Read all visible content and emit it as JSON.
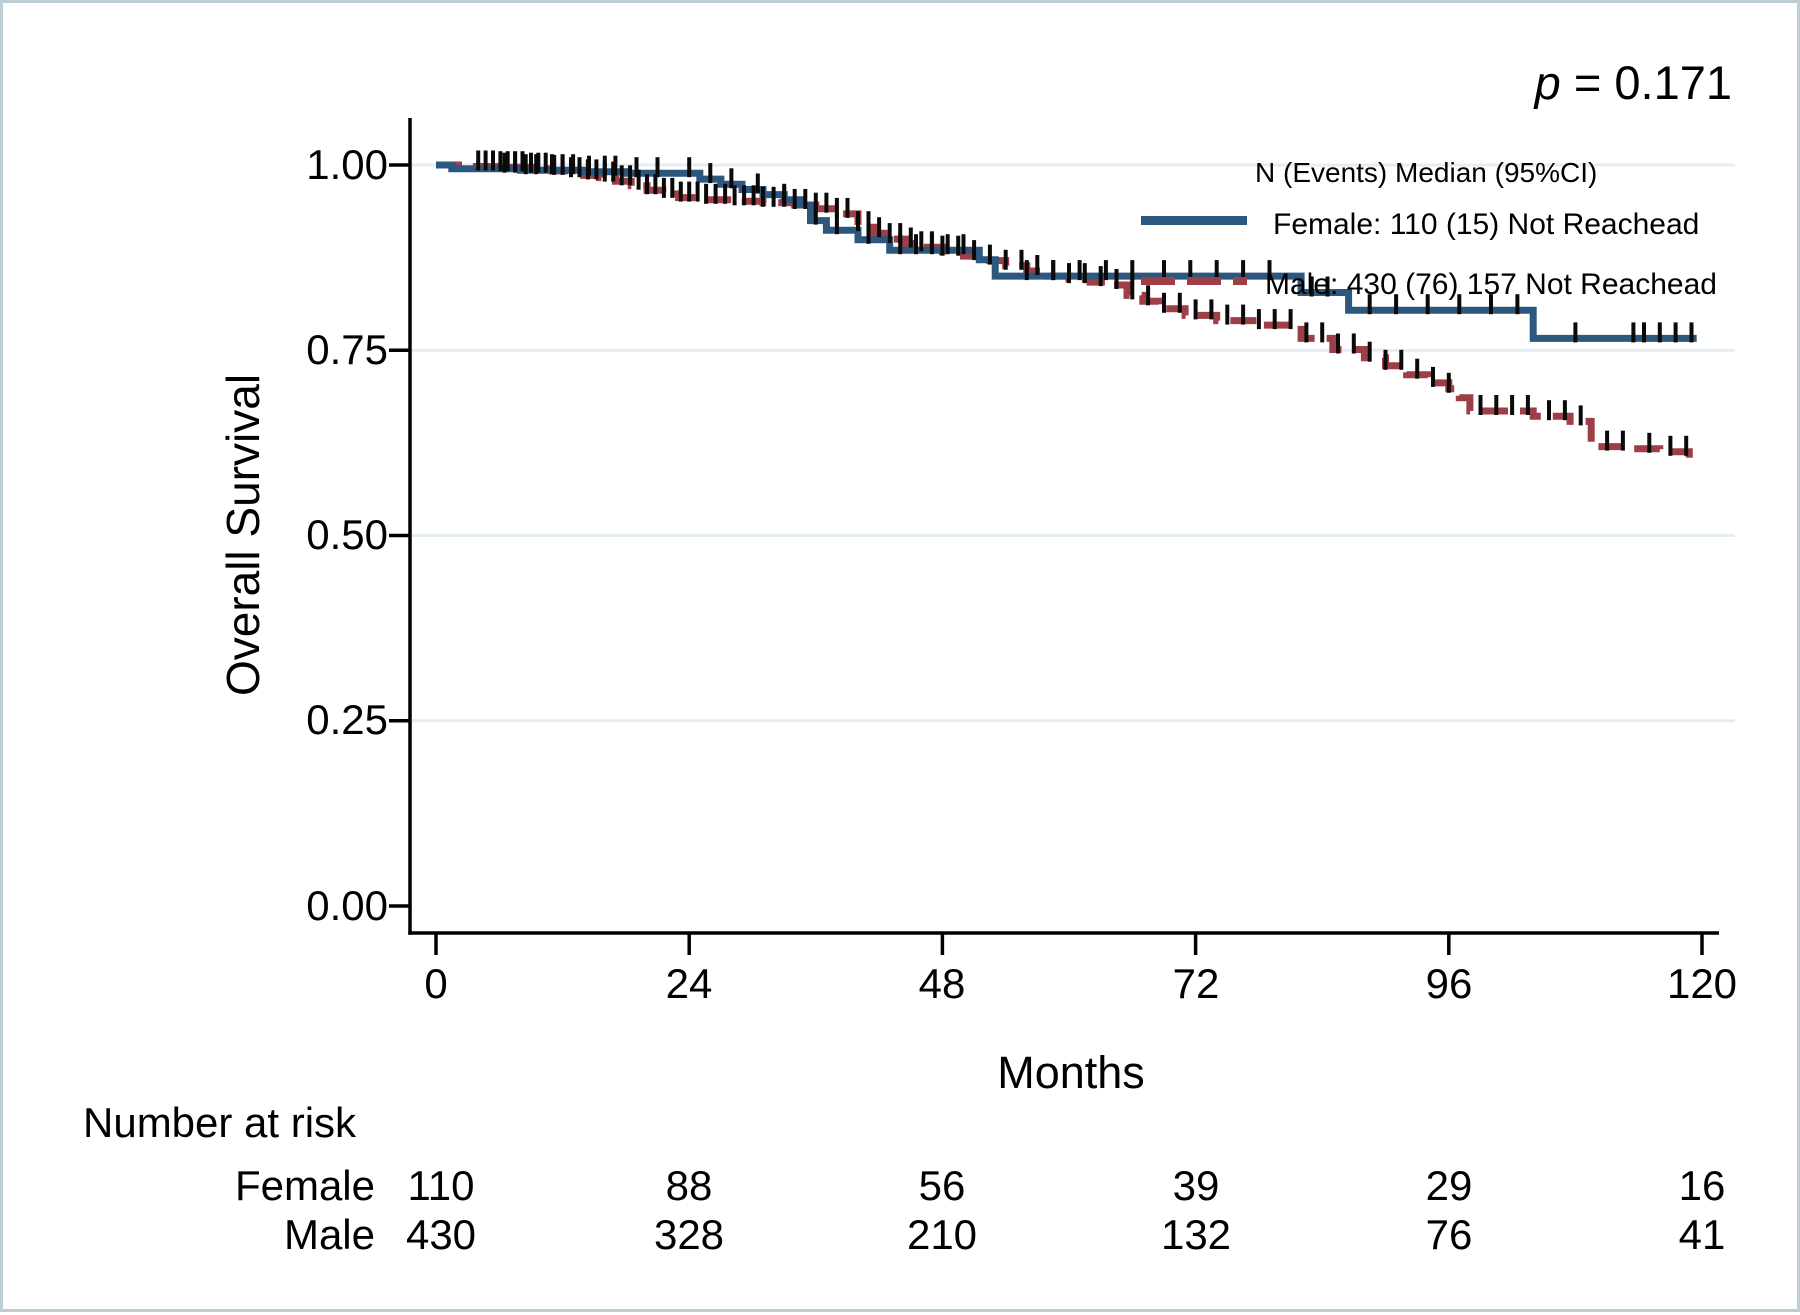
{
  "chart_data": {
    "type": "line",
    "subtype": "kaplan-meier-step",
    "title": "",
    "xlabel": "Months",
    "ylabel": "Overall Survival",
    "p_label": {
      "symbol": "p",
      "rest": " = 0.171"
    },
    "xlim": [
      0,
      120
    ],
    "ylim": [
      0,
      1
    ],
    "grid": true,
    "grid_color": "#e4eef1",
    "axis_color": "#000000",
    "censor_color": "#0a0a0a",
    "x_ticks": [
      0,
      24,
      48,
      72,
      96,
      120
    ],
    "x_tick_labels": [
      "0",
      "24",
      "48",
      "72",
      "96",
      "120"
    ],
    "y_ticks": [
      1.0,
      0.75,
      0.5,
      0.25,
      0.0
    ],
    "y_tick_labels": [
      "1.00",
      "0.75",
      "0.50",
      "0.25",
      "0.00"
    ],
    "legend": {
      "position": "upper right inside",
      "header": "N (Events) Median (95%CI)",
      "items": [
        {
          "label": "Female: 110 (15) Not Reachead",
          "color": "#2c5880",
          "style": "solid"
        },
        {
          "label": "Male: 430 (76) 157 Not Reachead",
          "color": "#9e3e46",
          "style": "dashed"
        }
      ]
    },
    "series": [
      {
        "name": "Female",
        "color": "#2c5880",
        "style": "solid",
        "n": 110,
        "events": 15,
        "median": "Not Reachead",
        "end_t": 119.5,
        "steps": [
          [
            0,
            1.0
          ],
          [
            1.5,
            0.995
          ],
          [
            8,
            0.993
          ],
          [
            14,
            0.991
          ],
          [
            18,
            0.989
          ],
          [
            25,
            0.981
          ],
          [
            27,
            0.974
          ],
          [
            29,
            0.967
          ],
          [
            31,
            0.96
          ],
          [
            33,
            0.953
          ],
          [
            34.5,
            0.946
          ],
          [
            35.5,
            0.925
          ],
          [
            37,
            0.912
          ],
          [
            40,
            0.899
          ],
          [
            43,
            0.885
          ],
          [
            51.5,
            0.872
          ],
          [
            53,
            0.85
          ],
          [
            82,
            0.828
          ],
          [
            86.5,
            0.804
          ],
          [
            104,
            0.766
          ]
        ],
        "censor_times": [
          6.5,
          7.5,
          8.5,
          9.5,
          11,
          12,
          13,
          14.5,
          16,
          17,
          19,
          21,
          24,
          26,
          28,
          30.5,
          33,
          36,
          38,
          41,
          44,
          45.5,
          47,
          48.5,
          50,
          56,
          58.5,
          61,
          63.5,
          66,
          69,
          71.5,
          74,
          76.5,
          79,
          83,
          84.5,
          88.5,
          91,
          94,
          97,
          100,
          102.5,
          108,
          113.5,
          114.5,
          116,
          117.5,
          119
        ]
      },
      {
        "name": "Male",
        "color": "#9e3e46",
        "style": "dashed",
        "n": 430,
        "events": 76,
        "median": "157 Not Reachead",
        "end_t": 119.5,
        "steps": [
          [
            0,
            1.0
          ],
          [
            3.5,
            0.998
          ],
          [
            6,
            0.997
          ],
          [
            9,
            0.995
          ],
          [
            11,
            0.992
          ],
          [
            12.5,
            0.989
          ],
          [
            14,
            0.986
          ],
          [
            15.5,
            0.983
          ],
          [
            17,
            0.978
          ],
          [
            18.5,
            0.972
          ],
          [
            20,
            0.966
          ],
          [
            21.5,
            0.961
          ],
          [
            23,
            0.956
          ],
          [
            25,
            0.953
          ],
          [
            28,
            0.951
          ],
          [
            31,
            0.949
          ],
          [
            34,
            0.946
          ],
          [
            36,
            0.941
          ],
          [
            38,
            0.934
          ],
          [
            40,
            0.916
          ],
          [
            41.5,
            0.908
          ],
          [
            43,
            0.9
          ],
          [
            44.5,
            0.894
          ],
          [
            46,
            0.889
          ],
          [
            48,
            0.883
          ],
          [
            50,
            0.877
          ],
          [
            52,
            0.871
          ],
          [
            54,
            0.864
          ],
          [
            56,
            0.857
          ],
          [
            58,
            0.85
          ],
          [
            60,
            0.846
          ],
          [
            62,
            0.842
          ],
          [
            64,
            0.838
          ],
          [
            65.5,
            0.824
          ],
          [
            67,
            0.816
          ],
          [
            68.5,
            0.806
          ],
          [
            71,
            0.797
          ],
          [
            74,
            0.79
          ],
          [
            78,
            0.784
          ],
          [
            82,
            0.766
          ],
          [
            85,
            0.751
          ],
          [
            88,
            0.74
          ],
          [
            90,
            0.729
          ],
          [
            92,
            0.717
          ],
          [
            94,
            0.706
          ],
          [
            96,
            0.698
          ],
          [
            97,
            0.686
          ],
          [
            98,
            0.668
          ],
          [
            104,
            0.661
          ],
          [
            107.5,
            0.654
          ],
          [
            109.5,
            0.62
          ],
          [
            113,
            0.617
          ],
          [
            116,
            0.613
          ],
          [
            118.8,
            0.603
          ]
        ],
        "censor_times": [
          4,
          4.7,
          5.4,
          6.1,
          6.8,
          7.5,
          8.2,
          9,
          9.7,
          10.4,
          11.2,
          12,
          12.8,
          13.6,
          14.4,
          15.2,
          16,
          16.8,
          17.6,
          18.4,
          19.2,
          20,
          20.8,
          21.6,
          22.4,
          23.2,
          24,
          24.8,
          25.6,
          26.5,
          27.4,
          28.3,
          29.2,
          30.1,
          31,
          32,
          33,
          34,
          35,
          36,
          37,
          38,
          39,
          40,
          41,
          42,
          43,
          44,
          45,
          46,
          47,
          48,
          49.5,
          51,
          52.5,
          54,
          55.5,
          57,
          58.5,
          60,
          61.5,
          63,
          64.5,
          66,
          67.5,
          69,
          70.5,
          72,
          73.5,
          75,
          76.5,
          78,
          79.5,
          81,
          82.5,
          84,
          85.5,
          87,
          88.5,
          90,
          91.5,
          93,
          94.5,
          96,
          99,
          100.5,
          102,
          103.5,
          105.5,
          107,
          108.5,
          111,
          112.5,
          115,
          117,
          118.5
        ]
      }
    ]
  },
  "risk_table": {
    "title": "Number at risk",
    "time_points": [
      0,
      24,
      48,
      72,
      96,
      120
    ],
    "rows": [
      {
        "label": "Female",
        "values": [
          "110",
          "88",
          "56",
          "39",
          "29",
          "16"
        ]
      },
      {
        "label": "Male",
        "values": [
          "430",
          "328",
          "210",
          "132",
          "76",
          "41"
        ]
      }
    ]
  }
}
